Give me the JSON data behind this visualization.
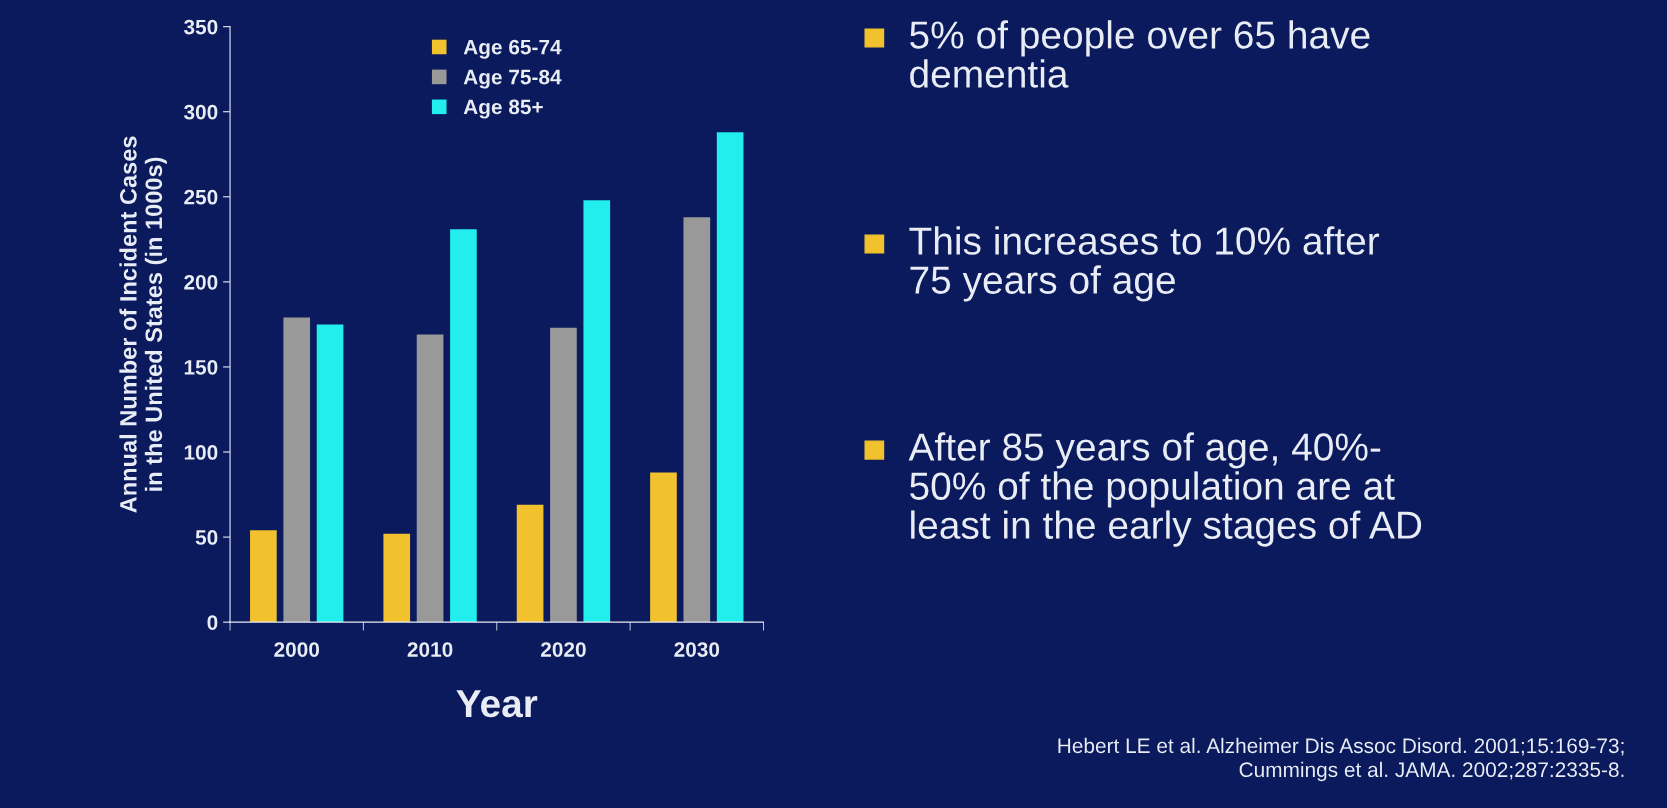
{
  "chart_data": {
    "type": "bar",
    "categories": [
      "2000",
      "2010",
      "2020",
      "2030"
    ],
    "series": [
      {
        "name": "Age 65-74",
        "color": "#f2c12e",
        "values": [
          54,
          52,
          69,
          88
        ]
      },
      {
        "name": "Age 75-84",
        "color": "#999999",
        "values": [
          179,
          169,
          173,
          238
        ]
      },
      {
        "name": "Age 85+",
        "color": "#22eeee",
        "values": [
          175,
          231,
          248,
          288
        ]
      }
    ],
    "xlabel": "Year",
    "ylabel": "Annual Number of Incident Cases\nin the United States (in 1000s)",
    "ylim": [
      0,
      350
    ],
    "yticks": [
      0,
      50,
      100,
      150,
      200,
      250,
      300,
      350
    ],
    "grid": false,
    "legend": "top",
    "annotations": [
      "5% of people over 65 have\ndementia",
      "This increases to 10% after\n75 years of age",
      "After 85 years of age, 40%-\n50% of the population are at\nleast in the early stages of AD",
      "Hebert LE et al. Alzheimer Dis Assoc Disord. 2001;15:169-73;\nCummings et al. JAMA. 2002;287:2335-8."
    ]
  }
}
